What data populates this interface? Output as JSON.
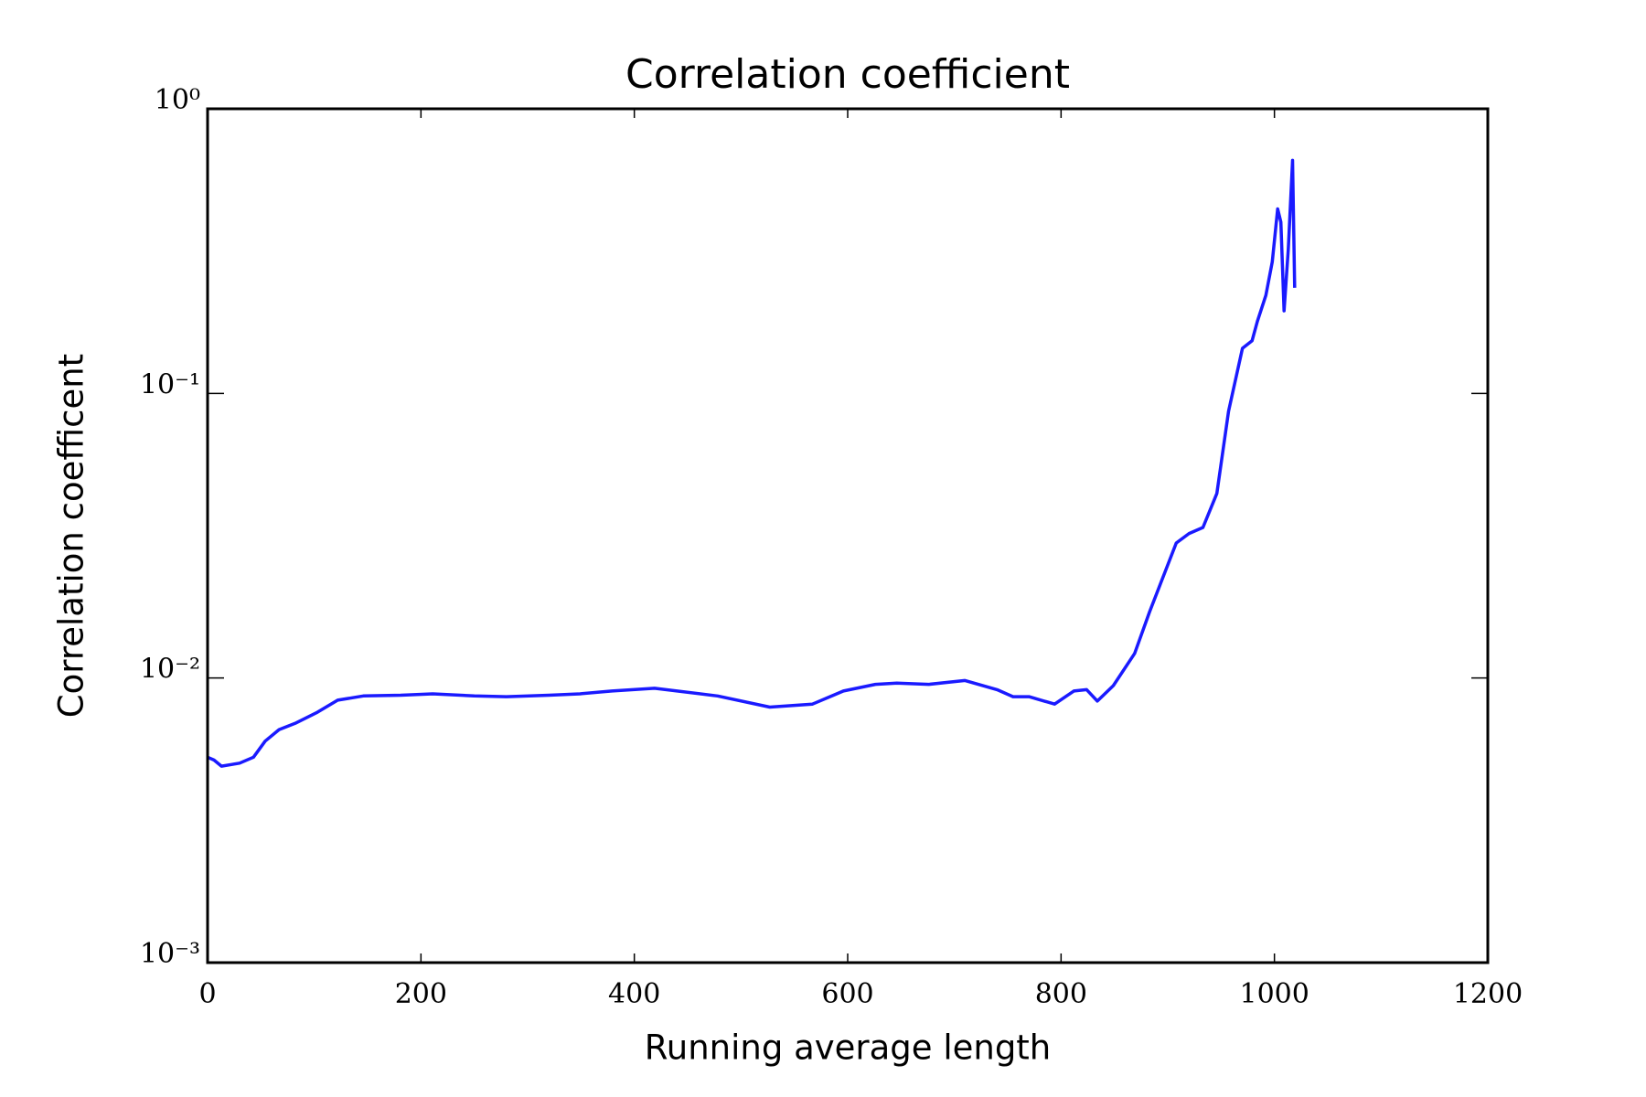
{
  "chart_data": {
    "type": "line",
    "title": "Correlation coefficient",
    "xlabel": "Running average length",
    "ylabel": "Correlation coefficent",
    "yscale": "log",
    "xlim": [
      0,
      1200
    ],
    "xticks": [
      0,
      200,
      400,
      600,
      800,
      1000,
      1200
    ],
    "ylim": [
      0.001,
      1
    ],
    "yticks": [
      {
        "value": 0.001,
        "label": "10⁻³"
      },
      {
        "value": 0.01,
        "label": "10⁻²"
      },
      {
        "value": 0.1,
        "label": "10⁻¹"
      },
      {
        "value": 1,
        "label": "10⁰"
      }
    ],
    "series": [
      {
        "color": "#1a1aff",
        "x": [
          0,
          6,
          13,
          23,
          30,
          43,
          54,
          67,
          82,
          102,
          122,
          146,
          181,
          211,
          250,
          280,
          320,
          349,
          379,
          419,
          478,
          527,
          567,
          596,
          626,
          646,
          676,
          710,
          740,
          755,
          770,
          794,
          812,
          824,
          834,
          849,
          869,
          883,
          908,
          920,
          933,
          946,
          957,
          970,
          979,
          984,
          992,
          998,
          1003,
          1006,
          1009,
          1013,
          1017,
          1019
        ],
        "values": [
          0.00527,
          0.00515,
          0.0049,
          0.00497,
          0.00502,
          0.00527,
          0.006,
          0.00659,
          0.00693,
          0.00755,
          0.00836,
          0.00865,
          0.0087,
          0.0088,
          0.00865,
          0.0086,
          0.0087,
          0.0088,
          0.009,
          0.0092,
          0.00865,
          0.0079,
          0.0081,
          0.009,
          0.0095,
          0.0096,
          0.0095,
          0.0098,
          0.0091,
          0.0086,
          0.0086,
          0.0081,
          0.009,
          0.0091,
          0.0083,
          0.0094,
          0.0122,
          0.0171,
          0.0298,
          0.0322,
          0.0338,
          0.0445,
          0.0865,
          0.144,
          0.153,
          0.179,
          0.221,
          0.29,
          0.445,
          0.4,
          0.195,
          0.32,
          0.659,
          0.235
        ]
      }
    ]
  }
}
